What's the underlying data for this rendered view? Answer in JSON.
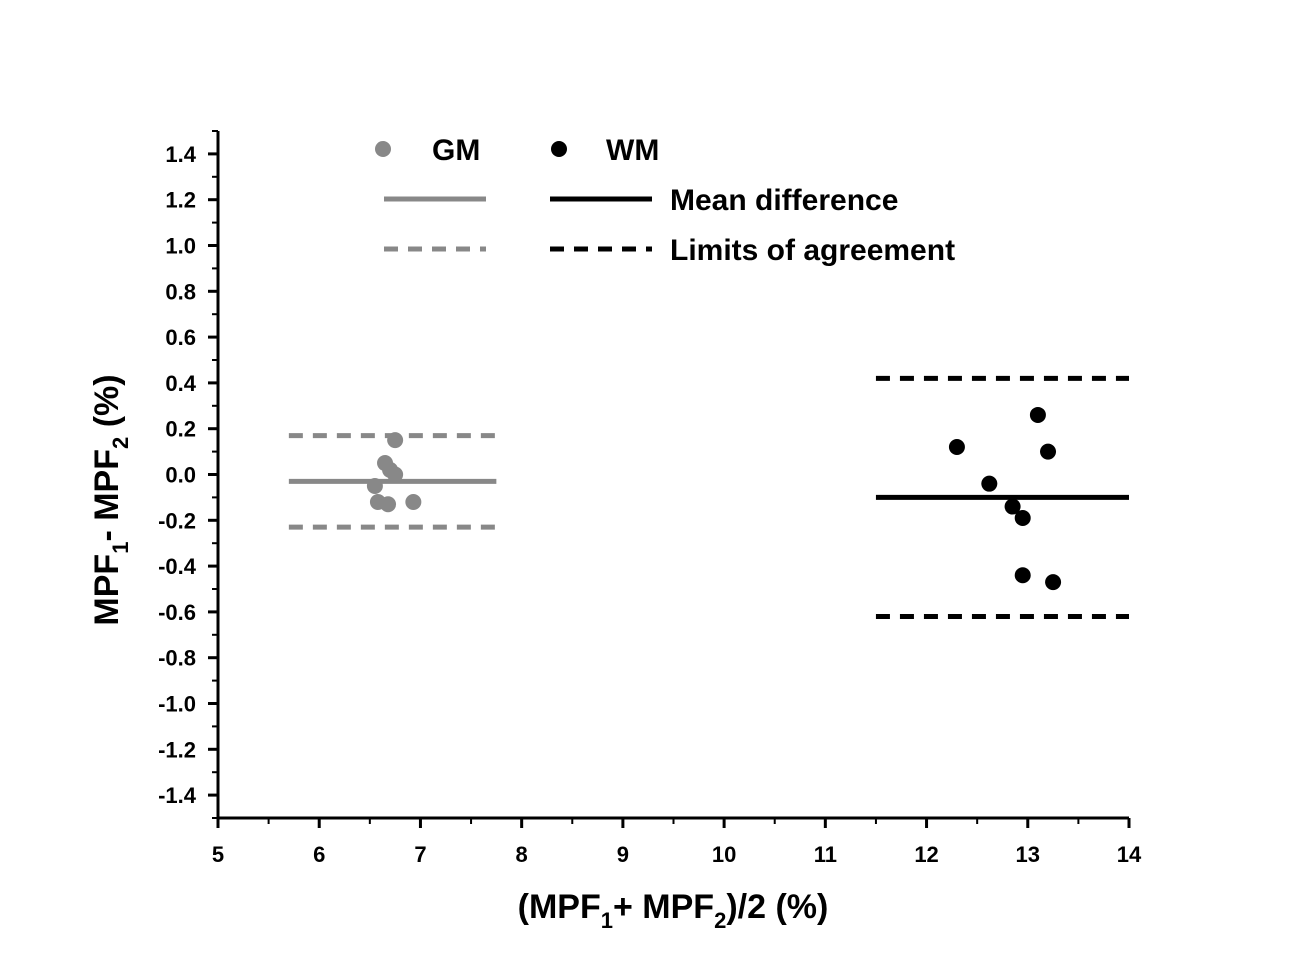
{
  "chart_data": {
    "type": "scatter",
    "title": "",
    "xlabel": {
      "open": "(MPF",
      "sub1": "1",
      "mid": "+ MPF",
      "sub2": "2",
      "close": ")/2  (%)"
    },
    "ylabel": {
      "a": "MPF",
      "sub1": "1",
      "b": "- MPF",
      "sub2": "2",
      "c": "  (%)"
    },
    "xlim": [
      5,
      14
    ],
    "ylim": [
      -1.5,
      1.5
    ],
    "xticks": [
      5,
      6,
      7,
      8,
      9,
      10,
      11,
      12,
      13,
      14
    ],
    "yticks": [
      -1.4,
      -1.2,
      -1.0,
      -0.8,
      -0.6,
      -0.4,
      -0.2,
      0.0,
      0.2,
      0.4,
      0.6,
      0.8,
      1.0,
      1.2,
      1.4
    ],
    "grid": false,
    "legend_position": "top",
    "legend": {
      "gm": "GM",
      "wm": "WM",
      "mean": "Mean difference",
      "limits": "Limits of agreement"
    },
    "colors": {
      "gm": "#888888",
      "wm": "#000000"
    },
    "series": [
      {
        "name": "GM",
        "points": [
          [
            6.75,
            0.15
          ],
          [
            6.65,
            0.05
          ],
          [
            6.7,
            0.02
          ],
          [
            6.75,
            0.0
          ],
          [
            6.55,
            -0.05
          ],
          [
            6.58,
            -0.12
          ],
          [
            6.68,
            -0.13
          ],
          [
            6.93,
            -0.12
          ]
        ],
        "mean_difference": -0.03,
        "limits_of_agreement": [
          0.17,
          -0.23
        ],
        "line_x_range": [
          5.7,
          7.75
        ]
      },
      {
        "name": "WM",
        "points": [
          [
            13.1,
            0.26
          ],
          [
            12.3,
            0.12
          ],
          [
            13.2,
            0.1
          ],
          [
            12.62,
            -0.04
          ],
          [
            12.85,
            -0.14
          ],
          [
            12.95,
            -0.19
          ],
          [
            12.95,
            -0.44
          ],
          [
            13.25,
            -0.47
          ]
        ],
        "mean_difference": -0.1,
        "limits_of_agreement": [
          0.42,
          -0.62
        ],
        "line_x_range": [
          11.5,
          14.0
        ]
      }
    ]
  }
}
